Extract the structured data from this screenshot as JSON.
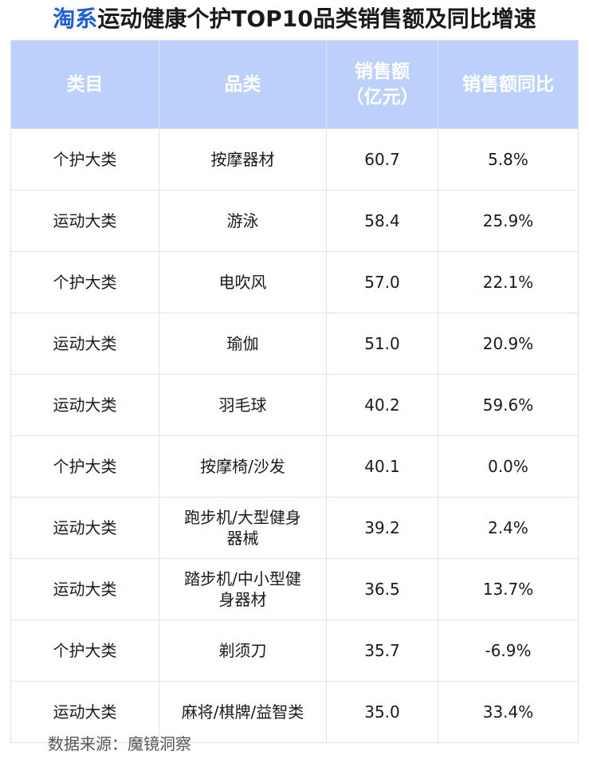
{
  "title": {
    "brand": "淘系",
    "rest": "运动健康个护TOP10品类销售额及同比增速"
  },
  "table": {
    "headers": [
      "类目",
      "品类",
      "销售额\n（亿元）",
      "销售额同比"
    ],
    "rows": [
      {
        "category": "个护大类",
        "item": "按摩器材",
        "sales": "60.7",
        "yoy": "5.8%"
      },
      {
        "category": "运动大类",
        "item": "游泳",
        "sales": "58.4",
        "yoy": "25.9%"
      },
      {
        "category": "个护大类",
        "item": "电吹风",
        "sales": "57.0",
        "yoy": "22.1%"
      },
      {
        "category": "运动大类",
        "item": "瑜伽",
        "sales": "51.0",
        "yoy": "20.9%"
      },
      {
        "category": "运动大类",
        "item": "羽毛球",
        "sales": "40.2",
        "yoy": "59.6%"
      },
      {
        "category": "个护大类",
        "item": "按摩椅/沙发",
        "sales": "40.1",
        "yoy": "0.0%"
      },
      {
        "category": "运动大类",
        "item": "跑步机/大型健身器械",
        "sales": "39.2",
        "yoy": "2.4%"
      },
      {
        "category": "运动大类",
        "item": "踏步机/中小型健身器材",
        "sales": "36.5",
        "yoy": "13.7%"
      },
      {
        "category": "个护大类",
        "item": "剃须刀",
        "sales": "35.7",
        "yoy": "-6.9%"
      },
      {
        "category": "运动大类",
        "item": "麻将/棋牌/益智类",
        "sales": "35.0",
        "yoy": "33.4%"
      }
    ]
  },
  "source": "数据来源：魔镜洞察",
  "colors": {
    "brand": "#1f5fd1",
    "header_bg": "#bcd0fb",
    "positive": "#e02a26",
    "negative": "#1aa64a"
  }
}
